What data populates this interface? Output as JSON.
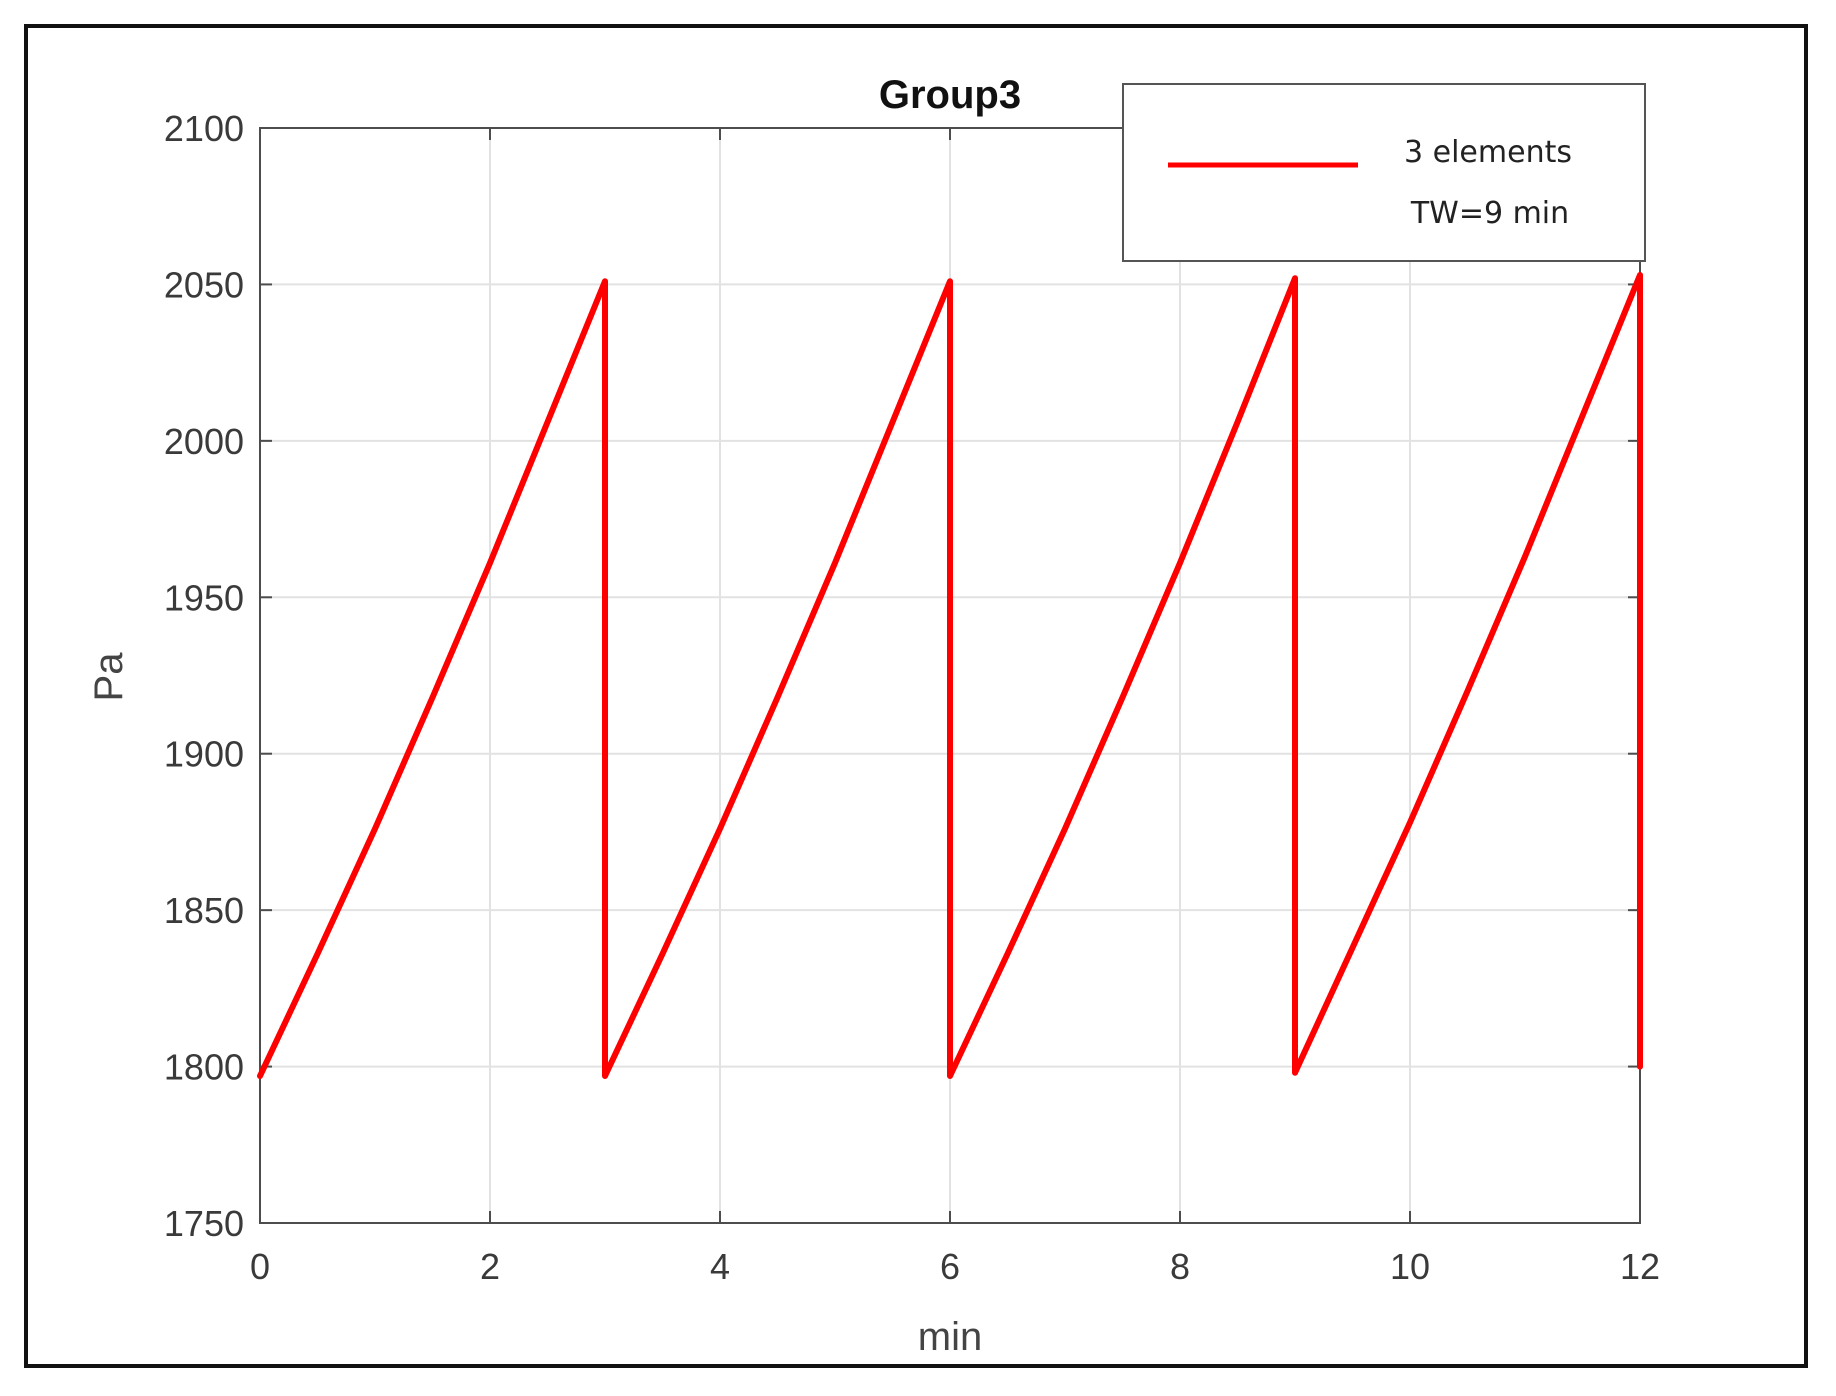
{
  "chart_data": {
    "type": "line",
    "title": "Group3",
    "xlabel": "min",
    "ylabel": "Pa",
    "xlim": [
      0,
      12
    ],
    "ylim": [
      1750,
      2100
    ],
    "xticks": [
      0,
      2,
      4,
      6,
      8,
      10,
      12
    ],
    "yticks": [
      1750,
      1800,
      1850,
      1900,
      1950,
      2000,
      2050,
      2100
    ],
    "grid": true,
    "legend": {
      "placement": "top-right",
      "entries": [
        "3 elements",
        "TW=9 min"
      ]
    },
    "series": [
      {
        "name": "3 elements",
        "color": "#ff0000",
        "x": [
          0,
          0.5,
          1,
          1.5,
          2,
          2.5,
          3,
          3,
          3.5,
          4,
          4.5,
          5,
          5.5,
          6,
          6,
          6.5,
          7,
          7.5,
          8,
          8.5,
          9,
          9,
          9.5,
          10,
          10.5,
          11,
          11.5,
          12,
          12
        ],
        "y": [
          1797,
          1836,
          1876,
          1918,
          1961,
          2006,
          2051,
          1797,
          1836,
          1876,
          1918,
          1961,
          2006,
          2051,
          1797,
          1836,
          1876,
          1918,
          1961,
          2006,
          2052,
          1798,
          1838,
          1878,
          1920,
          1963,
          2008,
          2053,
          1800
        ]
      }
    ]
  },
  "colors": {
    "series": "#ff0000",
    "grid": "#e2e2e2",
    "axis": "#4d4d4d"
  }
}
